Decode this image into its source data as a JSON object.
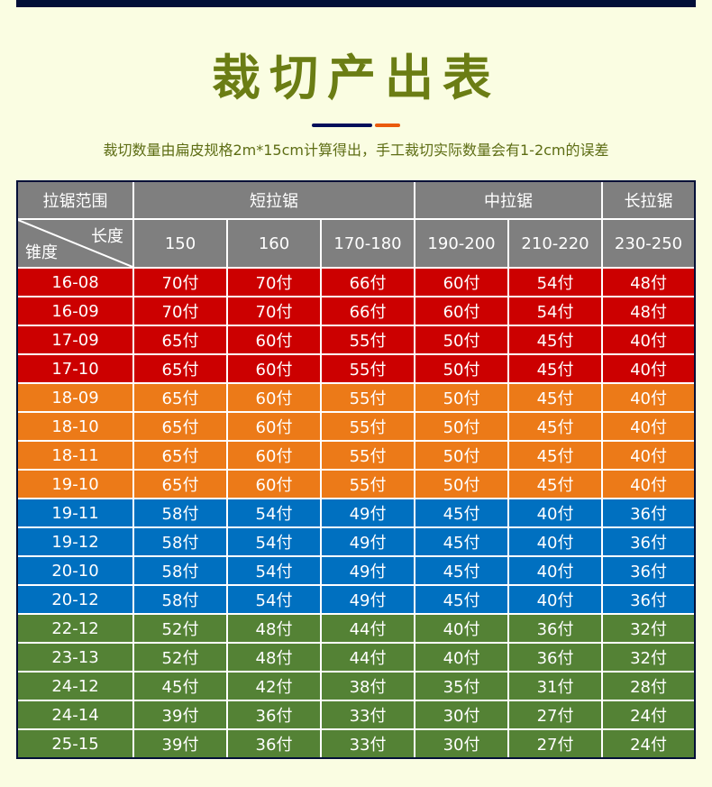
{
  "title": "裁切产出表",
  "subtitle": "裁切数量由扁皮规格2m*15cm计算得出，手工裁切实际数量会有1-2cm的误差",
  "colors": {
    "background": "#fafde2",
    "title": "#6b7d14",
    "top_bar": "#020f38",
    "divider_navy": "#020f5a",
    "divider_orange": "#ea5a0c",
    "header_gray": "#7f7f7f",
    "red": "#cc0000",
    "orange": "#ec7a18",
    "blue": "#0070c0",
    "green": "#548235"
  },
  "table": {
    "group_headers": {
      "range": "拉锯范围",
      "short": "短拉锯",
      "medium": "中拉锯",
      "long": "长拉锯"
    },
    "corner": {
      "top_right": "长度",
      "bottom_left": "锥度"
    },
    "lengths": [
      "150",
      "160",
      "170-180",
      "190-200",
      "210-220",
      "230-250"
    ],
    "rows": [
      {
        "taper": "16-08",
        "color": "red",
        "values": [
          "70付",
          "70付",
          "66付",
          "60付",
          "54付",
          "48付"
        ]
      },
      {
        "taper": "16-09",
        "color": "red",
        "values": [
          "70付",
          "70付",
          "66付",
          "60付",
          "54付",
          "48付"
        ]
      },
      {
        "taper": "17-09",
        "color": "red",
        "values": [
          "65付",
          "60付",
          "55付",
          "50付",
          "45付",
          "40付"
        ]
      },
      {
        "taper": "17-10",
        "color": "red",
        "values": [
          "65付",
          "60付",
          "55付",
          "50付",
          "45付",
          "40付"
        ]
      },
      {
        "taper": "18-09",
        "color": "orange",
        "values": [
          "65付",
          "60付",
          "55付",
          "50付",
          "45付",
          "40付"
        ]
      },
      {
        "taper": "18-10",
        "color": "orange",
        "values": [
          "65付",
          "60付",
          "55付",
          "50付",
          "45付",
          "40付"
        ]
      },
      {
        "taper": "18-11",
        "color": "orange",
        "values": [
          "65付",
          "60付",
          "55付",
          "50付",
          "45付",
          "40付"
        ]
      },
      {
        "taper": "19-10",
        "color": "orange",
        "values": [
          "65付",
          "60付",
          "55付",
          "50付",
          "45付",
          "40付"
        ]
      },
      {
        "taper": "19-11",
        "color": "blue",
        "values": [
          "58付",
          "54付",
          "49付",
          "45付",
          "40付",
          "36付"
        ]
      },
      {
        "taper": "19-12",
        "color": "blue",
        "values": [
          "58付",
          "54付",
          "49付",
          "45付",
          "40付",
          "36付"
        ]
      },
      {
        "taper": "20-10",
        "color": "blue",
        "values": [
          "58付",
          "54付",
          "49付",
          "45付",
          "40付",
          "36付"
        ]
      },
      {
        "taper": "20-12",
        "color": "blue",
        "values": [
          "58付",
          "54付",
          "49付",
          "45付",
          "40付",
          "36付"
        ]
      },
      {
        "taper": "22-12",
        "color": "green",
        "values": [
          "52付",
          "48付",
          "44付",
          "40付",
          "36付",
          "32付"
        ]
      },
      {
        "taper": "23-13",
        "color": "green",
        "values": [
          "52付",
          "48付",
          "44付",
          "40付",
          "36付",
          "32付"
        ]
      },
      {
        "taper": "24-12",
        "color": "green",
        "values": [
          "45付",
          "42付",
          "38付",
          "35付",
          "31付",
          "28付"
        ]
      },
      {
        "taper": "24-14",
        "color": "green",
        "values": [
          "39付",
          "36付",
          "33付",
          "30付",
          "27付",
          "24付"
        ]
      },
      {
        "taper": "25-15",
        "color": "green",
        "values": [
          "39付",
          "36付",
          "33付",
          "30付",
          "27付",
          "24付"
        ]
      }
    ]
  }
}
